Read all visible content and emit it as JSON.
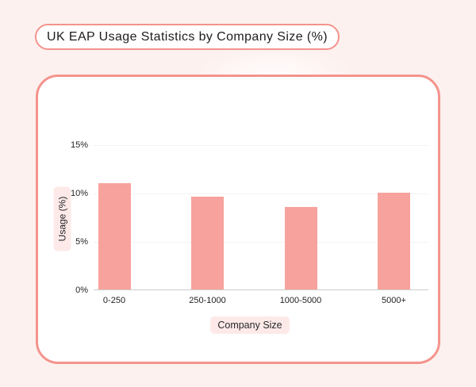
{
  "page": {
    "background_color": "#fdf1ef",
    "accent_color": "#f4938d",
    "bar_color": "#f7a29c"
  },
  "header": {
    "title": "UK EAP Usage Statistics by Company Size (%)"
  },
  "chart_data": {
    "type": "bar",
    "title": "UK EAP Usage Statistics by Company Size (%)",
    "categories": [
      "0-250",
      "250-1000",
      "1000-5000",
      "5000+"
    ],
    "values": [
      11,
      9.6,
      8.5,
      10
    ],
    "xlabel": "Company Size",
    "ylabel": "Usage (%)",
    "ytick_labels": [
      "0%",
      "5%",
      "10%",
      "15%"
    ],
    "ytick_values": [
      0,
      5,
      10,
      15
    ],
    "ylim": [
      0,
      15
    ],
    "grid": true,
    "legend_position": "none",
    "bar_color": "#f7a29c"
  }
}
